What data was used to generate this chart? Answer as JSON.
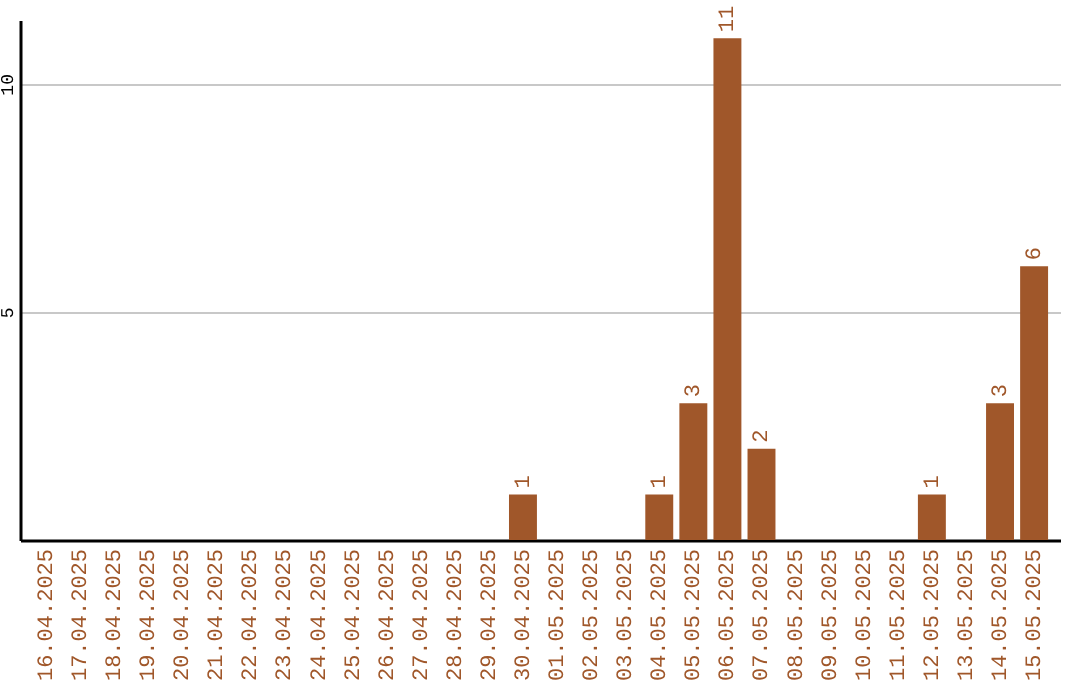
{
  "chart_data": {
    "type": "bar",
    "categories": [
      "16.04.2025",
      "17.04.2025",
      "18.04.2025",
      "19.04.2025",
      "20.04.2025",
      "21.04.2025",
      "22.04.2025",
      "23.04.2025",
      "24.04.2025",
      "25.04.2025",
      "26.04.2025",
      "27.04.2025",
      "28.04.2025",
      "29.04.2025",
      "30.04.2025",
      "01.05.2025",
      "02.05.2025",
      "03.05.2025",
      "04.05.2025",
      "05.05.2025",
      "06.05.2025",
      "07.05.2025",
      "08.05.2025",
      "09.05.2025",
      "10.05.2025",
      "11.05.2025",
      "12.05.2025",
      "13.05.2025",
      "14.05.2025",
      "15.05.2025"
    ],
    "values": [
      0,
      0,
      0,
      0,
      0,
      0,
      0,
      0,
      0,
      0,
      0,
      0,
      0,
      0,
      1,
      0,
      0,
      0,
      1,
      3,
      11,
      2,
      0,
      0,
      0,
      0,
      1,
      0,
      3,
      6
    ],
    "value_labels": [
      null,
      null,
      null,
      null,
      null,
      null,
      null,
      null,
      null,
      null,
      null,
      null,
      null,
      null,
      "1",
      null,
      null,
      null,
      "1",
      "3",
      "11",
      "2",
      null,
      null,
      null,
      null,
      "1",
      null,
      "3",
      "6"
    ],
    "color": "#a0572a",
    "ylim": [
      0,
      11.4
    ],
    "yticks": [
      5,
      10
    ],
    "grid": "y"
  }
}
